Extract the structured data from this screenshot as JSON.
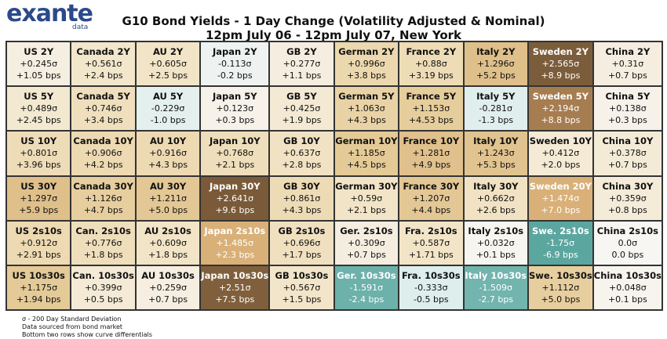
{
  "header": {
    "logo": "exante",
    "logo_sub": "data",
    "title": "G10 Bond Yields - 1 Day Change (Volatility Adjusted & Nominal)",
    "subtitle": "12pm July 06 - 12pm July 07, New York"
  },
  "table": {
    "rows": [
      [
        {
          "label": "US 2Y",
          "sigma": "+0.245σ",
          "bps": "+1.05 bps",
          "color": "#f5efe2"
        },
        {
          "label": "Canada 2Y",
          "sigma": "+0.561σ",
          "bps": "+2.4 bps",
          "color": "#f2e6cb"
        },
        {
          "label": "AU 2Y",
          "sigma": "+0.605σ",
          "bps": "+2.5 bps",
          "color": "#f2e4c6"
        },
        {
          "label": "Japan 2Y",
          "sigma": "-0.113σ",
          "bps": "-0.2 bps",
          "color": "#eef3f1"
        },
        {
          "label": "GB 2Y",
          "sigma": "+0.277σ",
          "bps": "+1.1 bps",
          "color": "#f5eee0"
        },
        {
          "label": "German 2Y",
          "sigma": "+0.996σ",
          "bps": "+3.8 bps",
          "color": "#ecd8ae"
        },
        {
          "label": "France 2Y",
          "sigma": "+0.88σ",
          "bps": "+3.19 bps",
          "color": "#eddcb6"
        },
        {
          "label": "Italy 2Y",
          "sigma": "+1.296σ",
          "bps": "+5.2 bps",
          "color": "#dfbf8a"
        },
        {
          "label": "Sweden 2Y",
          "sigma": "+2.565σ",
          "bps": "+8.9 bps",
          "color": "#7c5d3b"
        },
        {
          "label": "China 2Y",
          "sigma": "+0.31σ",
          "bps": "+0.7 bps",
          "color": "#f5eee0"
        }
      ],
      [
        {
          "label": "US 5Y",
          "sigma": "+0.489σ",
          "bps": "+2.45 bps",
          "color": "#f3e8d0"
        },
        {
          "label": "Canada 5Y",
          "sigma": "+0.746σ",
          "bps": "+3.4 bps",
          "color": "#efdfbd"
        },
        {
          "label": "AU 5Y",
          "sigma": "-0.229σ",
          "bps": "-1.0 bps",
          "color": "#e3f0ee"
        },
        {
          "label": "Japan 5Y",
          "sigma": "+0.123σ",
          "bps": "+0.3 bps",
          "color": "#f6f2ea"
        },
        {
          "label": "GB 5Y",
          "sigma": "+0.425σ",
          "bps": "+1.9 bps",
          "color": "#f4e9d3"
        },
        {
          "label": "German 5Y",
          "sigma": "+1.063σ",
          "bps": "+4.3 bps",
          "color": "#e9d3a6"
        },
        {
          "label": "France 5Y",
          "sigma": "+1.153σ",
          "bps": "+4.53 bps",
          "color": "#e6cd9c"
        },
        {
          "label": "Italy 5Y",
          "sigma": "-0.281σ",
          "bps": "-1.3 bps",
          "color": "#e0efed"
        },
        {
          "label": "Sweden 5Y",
          "sigma": "+2.194σ",
          "bps": "+8.8 bps",
          "color": "#a67d50"
        },
        {
          "label": "China 5Y",
          "sigma": "+0.138σ",
          "bps": "+0.3 bps",
          "color": "#f6f2ea"
        }
      ],
      [
        {
          "label": "US 10Y",
          "sigma": "+0.801σ",
          "bps": "+3.96 bps",
          "color": "#eedcb8"
        },
        {
          "label": "Canada 10Y",
          "sigma": "+0.906σ",
          "bps": "+4.2 bps",
          "color": "#edd9b2"
        },
        {
          "label": "AU 10Y",
          "sigma": "+0.916σ",
          "bps": "+4.3 bps",
          "color": "#edd9b2"
        },
        {
          "label": "Japan 10Y",
          "sigma": "+0.768σ",
          "bps": "+2.1 bps",
          "color": "#efdebb"
        },
        {
          "label": "GB 10Y",
          "sigma": "+0.637σ",
          "bps": "+2.8 bps",
          "color": "#f1e2c4"
        },
        {
          "label": "German 10Y",
          "sigma": "+1.185σ",
          "bps": "+4.5 bps",
          "color": "#e4ca96"
        },
        {
          "label": "France 10Y",
          "sigma": "+1.281σ",
          "bps": "+4.9 bps",
          "color": "#e0c08c"
        },
        {
          "label": "Italy 10Y",
          "sigma": "+1.243σ",
          "bps": "+5.3 bps",
          "color": "#e1c390"
        },
        {
          "label": "Sweden 10Y",
          "sigma": "+0.412σ",
          "bps": "+2.0 bps",
          "color": "#f4ead5"
        },
        {
          "label": "China 10Y",
          "sigma": "+0.378σ",
          "bps": "+0.7 bps",
          "color": "#f4ebd7"
        }
      ],
      [
        {
          "label": "US 30Y",
          "sigma": "+1.297σ",
          "bps": "+5.9 bps",
          "color": "#dfbf8a"
        },
        {
          "label": "Canada 30Y",
          "sigma": "+1.126σ",
          "bps": "+4.7 bps",
          "color": "#e7ce9e"
        },
        {
          "label": "AU 30Y",
          "sigma": "+1.211σ",
          "bps": "+5.0 bps",
          "color": "#e3c794"
        },
        {
          "label": "Japan 30Y",
          "sigma": "+2.641σ",
          "bps": "+9.6 bps",
          "color": "#7a5a38"
        },
        {
          "label": "GB 30Y",
          "sigma": "+0.861σ",
          "bps": "+4.3 bps",
          "color": "#eddbb5"
        },
        {
          "label": "German 30Y",
          "sigma": "+0.59σ",
          "bps": "+2.1 bps",
          "color": "#f2e4c6"
        },
        {
          "label": "France 30Y",
          "sigma": "+1.207σ",
          "bps": "+4.4 bps",
          "color": "#e3c794"
        },
        {
          "label": "Italy 30Y",
          "sigma": "+0.662σ",
          "bps": "+2.6 bps",
          "color": "#f1e2c3"
        },
        {
          "label": "Sweden 20Y",
          "sigma": "+1.474σ",
          "bps": "+7.0 bps",
          "color": "#d9b078"
        },
        {
          "label": "China 30Y",
          "sigma": "+0.359σ",
          "bps": "+0.8 bps",
          "color": "#f4ebd8"
        }
      ],
      [
        {
          "label": "US 2s10s",
          "sigma": "+0.912σ",
          "bps": "+2.91 bps",
          "color": "#edd9b2"
        },
        {
          "label": "Can. 2s10s",
          "sigma": "+0.776σ",
          "bps": "+1.8 bps",
          "color": "#efdebb"
        },
        {
          "label": "AU 2s10s",
          "sigma": "+0.609σ",
          "bps": "+1.8 bps",
          "color": "#f2e4c6"
        },
        {
          "label": "Japan 2s10s",
          "sigma": "+1.485σ",
          "bps": "+2.3 bps",
          "color": "#d9b078"
        },
        {
          "label": "GB 2s10s",
          "sigma": "+0.696σ",
          "bps": "+1.7 bps",
          "color": "#f0e0c0"
        },
        {
          "label": "Ger. 2s10s",
          "sigma": "+0.309σ",
          "bps": "+0.7 bps",
          "color": "#f5eee0"
        },
        {
          "label": "Fra. 2s10s",
          "sigma": "+0.587σ",
          "bps": "+1.71 bps",
          "color": "#f2e4c7"
        },
        {
          "label": "Italy 2s10s",
          "sigma": "+0.032σ",
          "bps": "+0.1 bps",
          "color": "#f7f5f0"
        },
        {
          "label": "Swe. 2s10s",
          "sigma": "-1.75σ",
          "bps": "-6.9 bps",
          "color": "#5ca6a0"
        },
        {
          "label": "China 2s10s",
          "sigma": "0.0σ",
          "bps": "0.0 bps",
          "color": "#f7f6f2"
        }
      ],
      [
        {
          "label": "US 10s30s",
          "sigma": "+1.175σ",
          "bps": "+1.94 bps",
          "color": "#e4ca97"
        },
        {
          "label": "Can. 10s30s",
          "sigma": "+0.399σ",
          "bps": "+0.5 bps",
          "color": "#f4ead5"
        },
        {
          "label": "AU 10s30s",
          "sigma": "+0.259σ",
          "bps": "+0.7 bps",
          "color": "#f5eee1"
        },
        {
          "label": "Japan 10s30s",
          "sigma": "+2.51σ",
          "bps": "+7.5 bps",
          "color": "#80603c"
        },
        {
          "label": "GB 10s30s",
          "sigma": "+0.567σ",
          "bps": "+1.5 bps",
          "color": "#f2e5c9"
        },
        {
          "label": "Ger. 10s30s",
          "sigma": "-1.591σ",
          "bps": "-2.4 bps",
          "color": "#6db1ab"
        },
        {
          "label": "Fra. 10s30s",
          "sigma": "-0.333σ",
          "bps": "-0.5 bps",
          "color": "#ddeeec"
        },
        {
          "label": "Italy 10s30s",
          "sigma": "-1.509σ",
          "bps": "-2.7 bps",
          "color": "#72b4ae"
        },
        {
          "label": "Swe. 10s30s",
          "sigma": "+1.112σ",
          "bps": "+5.0 bps",
          "color": "#e7ce9e"
        },
        {
          "label": "China 10s30s",
          "sigma": "+0.048σ",
          "bps": "+0.1 bps",
          "color": "#f7f4ee"
        }
      ]
    ]
  },
  "footnotes": [
    "σ - 200 Day Standard Deviation",
    "Data sourced from bond market",
    "Bottom two rows show curve differentials"
  ]
}
